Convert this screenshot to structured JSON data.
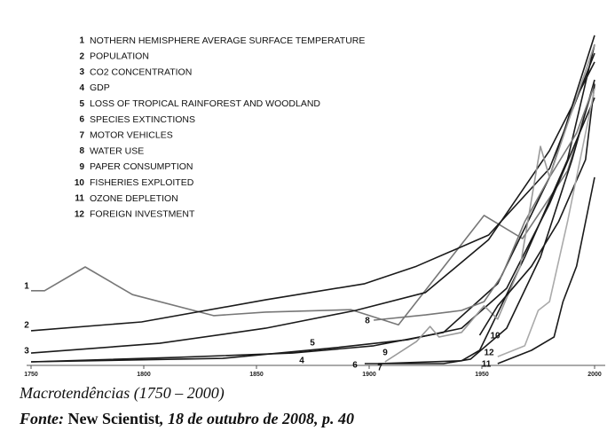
{
  "chart_data": {
    "type": "line",
    "caption": "Macrotendências (1750 – 2000)",
    "source": {
      "label": "Fonte:",
      "publication": "New Scientist",
      "rest": ", 18 de outubro de 2008, p. 40"
    },
    "xlim": [
      1750,
      2000
    ],
    "ylim": [
      0,
      100
    ],
    "xticks": [
      1750,
      1800,
      1850,
      1900,
      1950,
      2000
    ],
    "series": [
      {
        "label": "1",
        "name": "NOTHERN HEMISPHERE AVERAGE SURFACE TEMPERATURE",
        "color": "#777777",
        "x": [
          1750,
          1756,
          1774,
          1795,
          1831,
          1854,
          1892,
          1913,
          1951,
          1968,
          1988,
          2000
        ],
        "values": [
          20.8,
          20.8,
          27.6,
          19.7,
          13.7,
          14.7,
          15.4,
          11.1,
          42.3,
          35.7,
          55,
          80
        ]
      },
      {
        "label": "2",
        "name": "POPULATION",
        "color": "#1a1a1a",
        "x": [
          1750,
          1799,
          1854,
          1898,
          1921,
          1953,
          1980,
          2000
        ],
        "values": [
          9.4,
          11.9,
          18.2,
          22.8,
          27.8,
          36.7,
          55.7,
          88.6
        ]
      },
      {
        "label": "3",
        "name": "CO2 CONCENTRATION",
        "color": "#1a1a1a",
        "x": [
          1750,
          1807,
          1854,
          1894,
          1925,
          1953,
          1980,
          2000
        ],
        "values": [
          3.0,
          5.8,
          10.1,
          15.2,
          20.3,
          35.4,
          60.8,
          86.1
        ]
      },
      {
        "label": "4",
        "name": "GDP",
        "color": "#1a1a1a",
        "x": [
          1750,
          1815,
          1866,
          1902,
          1933,
          1957,
          1980,
          2000
        ],
        "values": [
          0.5,
          1.8,
          3.0,
          5.1,
          8.9,
          22.8,
          53.2,
          93.7
        ]
      },
      {
        "label": "5",
        "name": "LOSS OF TROPICAL RAINFOREST AND WOODLAND",
        "color": "#1a1a1a",
        "x": [
          1750,
          1835,
          1886,
          1917,
          1941,
          1961,
          1980,
          2000
        ],
        "values": [
          0.5,
          1.5,
          4.6,
          6.8,
          10.1,
          21.5,
          45.6,
          75.9
        ]
      },
      {
        "label": "6",
        "name": "SPECIES EXTINCTIONS",
        "color": "#1a1a1a",
        "x": [
          1898,
          1933,
          1945,
          1961,
          1976,
          1990,
          2000
        ],
        "values": [
          0,
          0,
          1.3,
          10.1,
          30.4,
          58.2,
          81
        ]
      },
      {
        "label": "7",
        "name": "MOTOR VEHICLES",
        "color": "#1a1a1a",
        "x": [
          1904,
          1941,
          1949,
          1969,
          1988,
          2000
        ],
        "values": [
          0,
          0.8,
          3.8,
          30.4,
          58.2,
          91.1
        ]
      },
      {
        "label": "8",
        "name": "WATER USE",
        "color": "#777777",
        "x": [
          1902,
          1925,
          1941,
          1951,
          1959,
          1969,
          1980,
          1992,
          2000
        ],
        "values": [
          12.4,
          13.9,
          15.2,
          17.7,
          25.3,
          40.5,
          53.2,
          65.8,
          79.7
        ]
      },
      {
        "label": "9",
        "name": "PAPER CONSUMPTION",
        "color": "#999999",
        "x": [
          1907,
          1921,
          1927,
          1931,
          1941,
          1951,
          1957,
          1967,
          1976,
          1980,
          1988,
          2000
        ],
        "values": [
          0.5,
          6.3,
          10.6,
          7.6,
          8.9,
          16.5,
          12.7,
          27.8,
          62,
          53.2,
          68.4,
          91.1
        ]
      },
      {
        "label": "10",
        "name": "FISHERIES EXPLOITED",
        "color": "#1a1a1a",
        "x": [
          1949,
          1957,
          1972,
          1984,
          1996,
          2000
        ],
        "values": [
          8.1,
          16.5,
          27.8,
          40.5,
          58.2,
          79.7
        ]
      },
      {
        "label": "11",
        "name": "OZONE DEPLETION",
        "color": "#1a1a1a",
        "x": [
          1957,
          1972,
          1982,
          1986,
          1992,
          2000
        ],
        "values": [
          0,
          3.8,
          7.6,
          17.7,
          27.8,
          53.2
        ]
      },
      {
        "label": "12",
        "name": "FOREIGN INVESTMENT",
        "color": "#aaaaaa",
        "x": [
          1957,
          1969,
          1975,
          1980,
          1988,
          2000
        ],
        "values": [
          2,
          5.1,
          15.2,
          17.7,
          40.5,
          78.5
        ]
      }
    ]
  }
}
